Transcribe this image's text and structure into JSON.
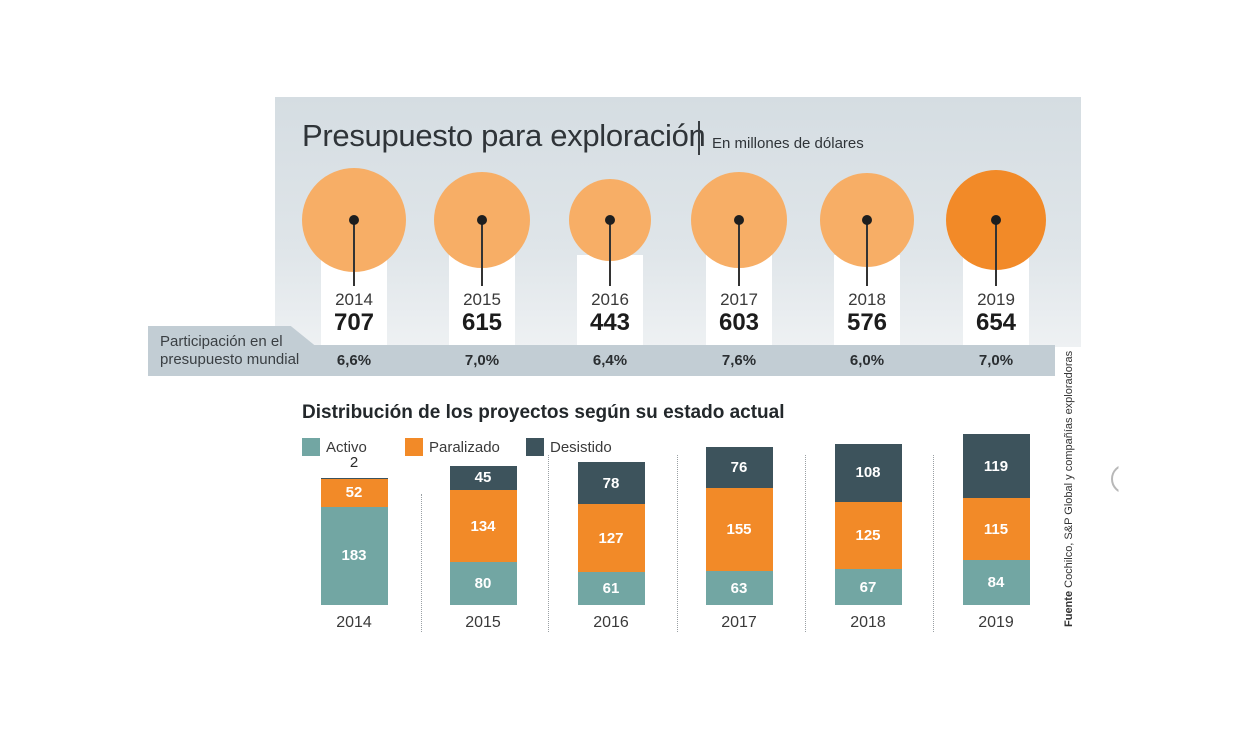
{
  "colors": {
    "bubble": "#f7ae66",
    "bubble_highlight": "#f28a28",
    "activo": "#72a6a3",
    "paralizado": "#f28a28",
    "desistido": "#3d535c"
  },
  "header": {
    "title": "Presupuesto para exploración",
    "subtitle": "En millones de dólares"
  },
  "share": {
    "label_line1": "Participación en el",
    "label_line2": "presupuesto mundial"
  },
  "distribution": {
    "title": "Distribución de los proyectos según su estado actual",
    "legend": [
      {
        "key": "activo",
        "label": "Activo"
      },
      {
        "key": "paralizado",
        "label": "Paralizado"
      },
      {
        "key": "desistido",
        "label": "Desistido"
      }
    ]
  },
  "source": {
    "label": "Fuente",
    "text": "Cochilco, S&P Global y compañías exploradoras"
  },
  "nav": {
    "icon": "carousel-nav-icon"
  },
  "chart_data": [
    {
      "type": "bubble",
      "title": "Presupuesto para exploración",
      "subtitle": "En millones de dólares",
      "categories": [
        "2014",
        "2015",
        "2016",
        "2017",
        "2018",
        "2019"
      ],
      "values": [
        707,
        615,
        443,
        603,
        576,
        654
      ],
      "value_labels": [
        "707",
        "615",
        "443",
        "603",
        "576",
        "654"
      ],
      "highlight": "2019",
      "share_label": "Participación en el presupuesto mundial",
      "share_values": [
        "6,6%",
        "7,0%",
        "6,4%",
        "7,6%",
        "6,0%",
        "7,0%"
      ]
    },
    {
      "type": "bar",
      "stacked": true,
      "title": "Distribución de los proyectos según su estado actual",
      "categories": [
        "2014",
        "2015",
        "2016",
        "2017",
        "2018",
        "2019"
      ],
      "series": [
        {
          "name": "Activo",
          "key": "activo",
          "values": [
            183,
            80,
            61,
            63,
            67,
            84
          ]
        },
        {
          "name": "Paralizado",
          "key": "paralizado",
          "values": [
            52,
            134,
            127,
            155,
            125,
            115
          ]
        },
        {
          "name": "Desistido",
          "key": "desistido",
          "values": [
            2,
            45,
            78,
            76,
            108,
            119
          ]
        }
      ],
      "legend": "top-left",
      "ylim": [
        0,
        320
      ],
      "grid": false
    }
  ]
}
